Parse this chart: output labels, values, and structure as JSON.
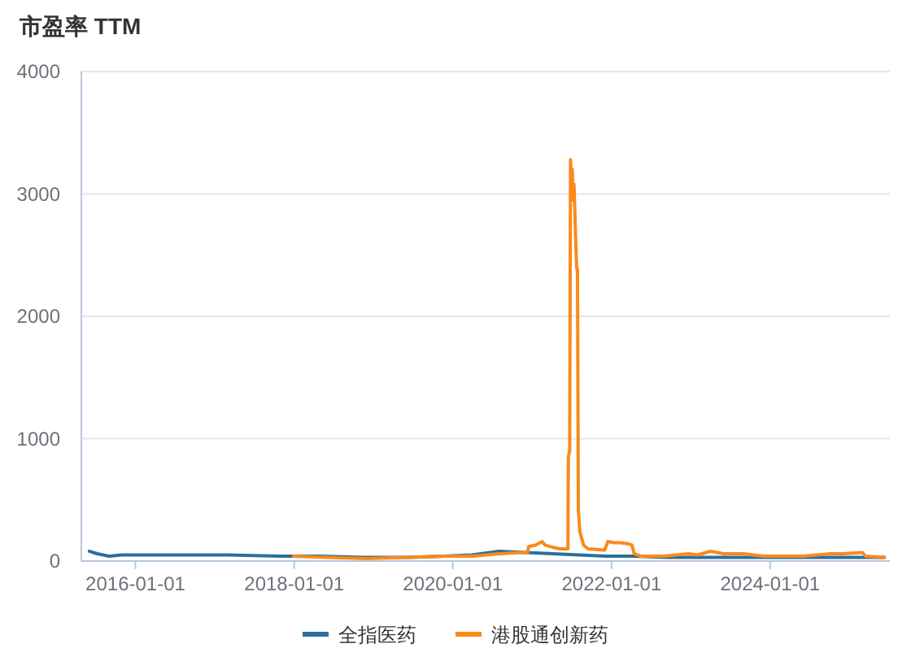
{
  "chart_data": {
    "type": "line",
    "title": "市盈率 TTM",
    "xlim": [
      "2015-04-27",
      "2025-07-05"
    ],
    "xticks": [
      "2016-01-01",
      "2018-01-01",
      "2020-01-01",
      "2022-01-01",
      "2024-01-01"
    ],
    "ylim": [
      0,
      4000
    ],
    "yticks": [
      0,
      1000,
      2000,
      3000,
      4000
    ],
    "grid": "y",
    "legend": "bottom",
    "series": [
      {
        "name": "全指医药",
        "color": "#2a6f9e",
        "x": [
          "2015-06-03",
          "2015-06-20",
          "2015-07-10",
          "2015-09-01",
          "2015-11-01",
          "2016-01-01",
          "2016-07-01",
          "2017-03-01",
          "2017-11-01",
          "2018-05-01",
          "2018-11-15",
          "2019-06-01",
          "2019-11-20",
          "2020-03-30",
          "2020-08-01",
          "2020-12-01",
          "2021-04-07",
          "2021-08-05",
          "2021-12-10",
          "2022-04-15",
          "2022-09-15",
          "2023-04-25",
          "2023-12-05",
          "2024-07-20",
          "2024-12-15",
          "2025-06-10"
        ],
        "values": [
          80,
          70,
          60,
          40,
          50,
          50,
          50,
          50,
          40,
          40,
          30,
          30,
          40,
          50,
          80,
          70,
          60,
          50,
          40,
          40,
          30,
          30,
          30,
          30,
          30,
          30
        ]
      },
      {
        "name": "港股通创新药",
        "color": "#fa8a1c",
        "x": [
          "2017-12-29",
          "2018-06-01",
          "2018-12-01",
          "2019-06-01",
          "2019-12-01",
          "2020-04-01",
          "2020-08-01",
          "2020-11-15",
          "2020-12-10",
          "2020-12-16",
          "2021-01-15",
          "2021-02-15",
          "2021-03-01",
          "2021-03-20",
          "2021-04-10",
          "2021-05-10",
          "2021-06-14",
          "2021-06-16",
          "2021-06-22",
          "2021-06-26",
          "2021-06-30",
          "2021-07-04",
          "2021-07-08",
          "2021-07-12",
          "2021-07-18",
          "2021-07-24",
          "2021-07-28",
          "2021-08-01",
          "2021-08-08",
          "2021-08-25",
          "2021-09-15",
          "2021-11-30",
          "2021-12-15",
          "2022-01-15",
          "2022-02-15",
          "2022-03-20",
          "2022-04-05",
          "2022-04-15",
          "2022-05-15",
          "2022-09-01",
          "2022-12-20",
          "2023-02-01",
          "2023-04-01",
          "2023-06-01",
          "2023-09-01",
          "2023-12-01",
          "2024-03-01",
          "2024-06-01",
          "2024-10-01",
          "2024-12-01",
          "2025-03-01",
          "2025-03-15",
          "2025-06-10"
        ],
        "values": [
          40,
          30,
          20,
          30,
          40,
          40,
          60,
          70,
          70,
          120,
          130,
          160,
          130,
          120,
          110,
          100,
          100,
          850,
          900,
          3280,
          3050,
          3200,
          2950,
          3080,
          2720,
          2400,
          2380,
          420,
          240,
          130,
          100,
          90,
          160,
          150,
          150,
          140,
          130,
          60,
          40,
          40,
          60,
          50,
          80,
          60,
          60,
          40,
          40,
          40,
          60,
          60,
          70,
          40,
          30
        ]
      }
    ]
  }
}
